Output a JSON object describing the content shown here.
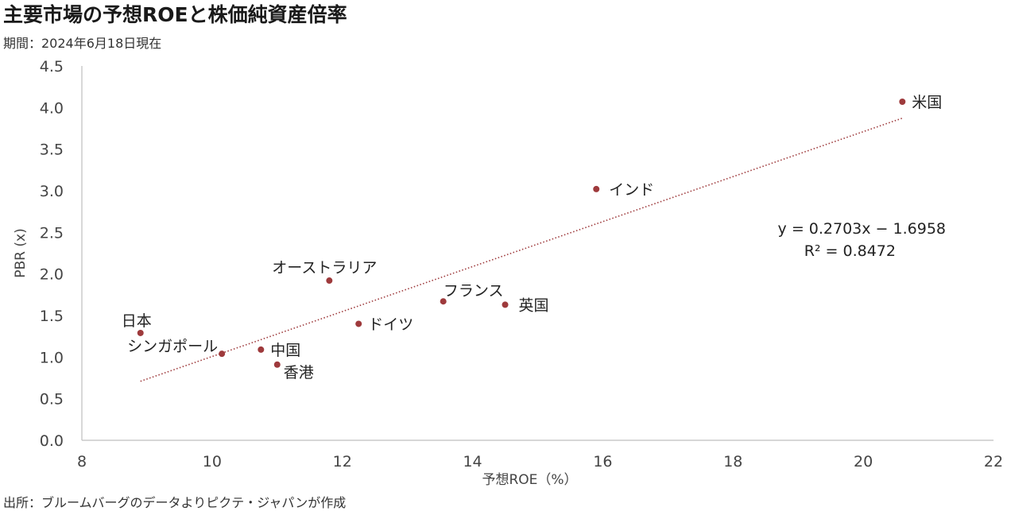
{
  "title": "主要市場の予想ROEと株価純資産倍率",
  "subtitle": "期間：2024年6月18日現在",
  "source": "出所：ブルームバーグのデータよりピクテ・ジャパンが作成",
  "colors": {
    "point": "#9e3a3c",
    "trendline": "#9e3a3c",
    "axis": "#bfbfbf"
  },
  "chart_data": {
    "type": "scatter",
    "xlabel": "予想ROE（%）",
    "ylabel": "PBR (x)",
    "xlim": [
      8,
      22
    ],
    "ylim": [
      0,
      4.5
    ],
    "xticks": [
      8,
      10,
      12,
      14,
      16,
      18,
      20,
      22
    ],
    "yticks": [
      "0.0",
      "0.5",
      "1.0",
      "1.5",
      "2.0",
      "2.5",
      "3.0",
      "3.5",
      "4.0",
      "4.5"
    ],
    "grid": false,
    "points": [
      {
        "label": "米国",
        "x": 20.6,
        "y": 4.07
      },
      {
        "label": "インド",
        "x": 15.9,
        "y": 3.02
      },
      {
        "label": "オーストラリア",
        "x": 11.8,
        "y": 1.92
      },
      {
        "label": "フランス",
        "x": 13.55,
        "y": 1.67
      },
      {
        "label": "英国",
        "x": 14.5,
        "y": 1.63
      },
      {
        "label": "ドイツ",
        "x": 12.25,
        "y": 1.4
      },
      {
        "label": "日本",
        "x": 8.9,
        "y": 1.29
      },
      {
        "label": "シンガポール",
        "x": 10.15,
        "y": 1.04
      },
      {
        "label": "中国",
        "x": 10.75,
        "y": 1.09
      },
      {
        "label": "香港",
        "x": 11.0,
        "y": 0.91
      }
    ],
    "trendline": {
      "type": "linear",
      "slope": 0.2703,
      "intercept": -1.6958,
      "x_range": [
        8.9,
        20.6
      ],
      "equation": "y = 0.2703x − 1.6958",
      "r_squared": "R² = 0.8472"
    }
  }
}
